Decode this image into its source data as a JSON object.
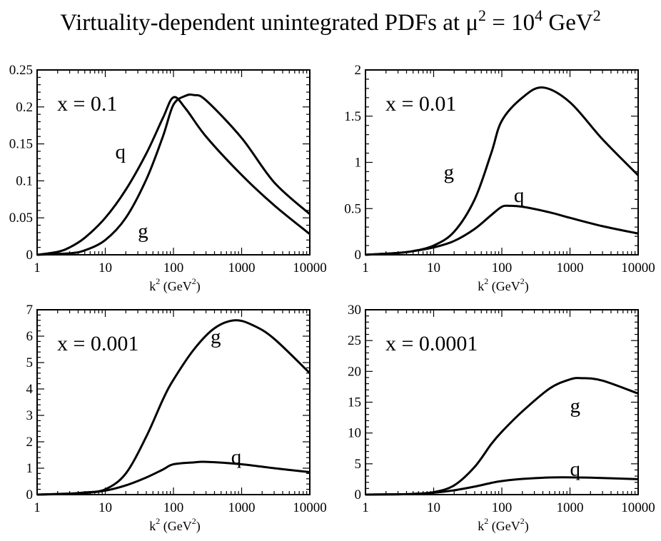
{
  "figure": {
    "title_prefix": "Virtuality-dependent unintegrated PDFs at μ",
    "title_mu_exp": "2",
    "title_eq": " = 10",
    "title_10_exp": "4",
    "title_unit": " GeV",
    "title_unit_exp": "2"
  },
  "chart_data": [
    {
      "type": "line",
      "panel_label": "x = 0.1",
      "xscale": "log",
      "xlim": [
        1,
        10000
      ],
      "ylim": [
        0,
        0.25
      ],
      "xticks": [
        1,
        10,
        100,
        1000,
        10000
      ],
      "xtick_labels": [
        "1",
        "10",
        "100",
        "1000",
        "10000"
      ],
      "yticks": [
        0,
        0.05,
        0.1,
        0.15,
        0.2,
        0.25
      ],
      "ytick_labels": [
        "0",
        "0.05",
        "0.1",
        "0.15",
        "0.2",
        "0.25"
      ],
      "xlabel": {
        "k": "k",
        "k_exp": "2",
        "unit": "(GeV",
        "unit_exp": "2",
        "close": ")"
      },
      "series": [
        {
          "name": "q",
          "label_at": [
            14,
            0.14
          ],
          "x": [
            1,
            2,
            3,
            5,
            10,
            20,
            40,
            70,
            100,
            150,
            300,
            1000,
            3000,
            10000
          ],
          "y": [
            0,
            0.004,
            0.01,
            0.023,
            0.05,
            0.088,
            0.137,
            0.185,
            0.213,
            0.198,
            0.16,
            0.108,
            0.067,
            0.028
          ]
        },
        {
          "name": "g",
          "label_at": [
            30,
            0.033
          ],
          "x": [
            1,
            3,
            5,
            10,
            20,
            40,
            70,
            100,
            150,
            200,
            300,
            1000,
            3000,
            10000
          ],
          "y": [
            0,
            0.002,
            0.006,
            0.02,
            0.05,
            0.102,
            0.16,
            0.203,
            0.215,
            0.216,
            0.209,
            0.158,
            0.098,
            0.055
          ]
        }
      ]
    },
    {
      "type": "line",
      "panel_label": "x = 0.01",
      "xscale": "log",
      "xlim": [
        1,
        10000
      ],
      "ylim": [
        0,
        2
      ],
      "xticks": [
        1,
        10,
        100,
        1000,
        10000
      ],
      "xtick_labels": [
        "1",
        "10",
        "100",
        "1000",
        "10000"
      ],
      "yticks": [
        0,
        0.5,
        1,
        1.5,
        2
      ],
      "ytick_labels": [
        "0",
        "0.5",
        "1",
        "1.5",
        "2"
      ],
      "xlabel": {
        "k": "k",
        "k_exp": "2",
        "unit": "(GeV",
        "unit_exp": "2",
        "close": ")"
      },
      "series": [
        {
          "name": "g",
          "label_at": [
            14,
            0.9
          ],
          "x": [
            1,
            3,
            5,
            10,
            20,
            40,
            70,
            100,
            200,
            400,
            1000,
            3000,
            10000
          ],
          "y": [
            0,
            0.02,
            0.04,
            0.1,
            0.25,
            0.6,
            1.1,
            1.45,
            1.7,
            1.81,
            1.65,
            1.25,
            0.86
          ]
        },
        {
          "name": "q",
          "label_at": [
            150,
            0.65
          ],
          "x": [
            1,
            3,
            5,
            10,
            20,
            40,
            70,
            100,
            130,
            200,
            500,
            1000,
            3000,
            10000
          ],
          "y": [
            0,
            0.02,
            0.04,
            0.08,
            0.15,
            0.28,
            0.43,
            0.52,
            0.53,
            0.52,
            0.46,
            0.4,
            0.31,
            0.23
          ]
        }
      ]
    },
    {
      "type": "line",
      "panel_label": "x = 0.001",
      "xscale": "log",
      "xlim": [
        1,
        10000
      ],
      "ylim": [
        0,
        7
      ],
      "xticks": [
        1,
        10,
        100,
        1000,
        10000
      ],
      "xtick_labels": [
        "1",
        "10",
        "100",
        "1000",
        "10000"
      ],
      "yticks": [
        0,
        1,
        2,
        3,
        4,
        5,
        6,
        7
      ],
      "ytick_labels": [
        "0",
        "1",
        "2",
        "3",
        "4",
        "5",
        "6",
        "7"
      ],
      "xlabel": {
        "k": "k",
        "k_exp": "2",
        "unit": "(GeV",
        "unit_exp": "2",
        "close": ")"
      },
      "series": [
        {
          "name": "g",
          "label_at": [
            350,
            6.0
          ],
          "x": [
            1,
            3,
            5,
            10,
            20,
            40,
            70,
            100,
            200,
            400,
            800,
            1500,
            3000,
            10000
          ],
          "y": [
            0,
            0.04,
            0.08,
            0.2,
            0.8,
            2.2,
            3.6,
            4.35,
            5.5,
            6.3,
            6.6,
            6.4,
            5.9,
            4.6
          ]
        },
        {
          "name": "q",
          "label_at": [
            700,
            1.45
          ],
          "x": [
            1,
            3,
            5,
            10,
            20,
            40,
            70,
            100,
            200,
            300,
            1000,
            3000,
            10000
          ],
          "y": [
            0,
            0.03,
            0.06,
            0.15,
            0.35,
            0.65,
            0.95,
            1.15,
            1.22,
            1.24,
            1.15,
            1.0,
            0.85
          ]
        }
      ]
    },
    {
      "type": "line",
      "panel_label": "x = 0.0001",
      "xscale": "log",
      "xlim": [
        1,
        10000
      ],
      "ylim": [
        0,
        30
      ],
      "xticks": [
        1,
        10,
        100,
        1000,
        10000
      ],
      "xtick_labels": [
        "1",
        "10",
        "100",
        "1000",
        "10000"
      ],
      "yticks": [
        0,
        5,
        10,
        15,
        20,
        25,
        30
      ],
      "ytick_labels": [
        "0",
        "5",
        "10",
        "15",
        "20",
        "25",
        "30"
      ],
      "xlabel": {
        "k": "k",
        "k_exp": "2",
        "unit": "(GeV",
        "unit_exp": "2",
        "close": ")"
      },
      "series": [
        {
          "name": "g",
          "label_at": [
            1000,
            14.5
          ],
          "x": [
            1,
            3,
            5,
            10,
            20,
            40,
            70,
            100,
            200,
            500,
            1000,
            1500,
            3000,
            10000
          ],
          "y": [
            0,
            0.05,
            0.12,
            0.4,
            1.5,
            4.5,
            8.2,
            10.2,
            13.5,
            17.2,
            18.7,
            18.9,
            18.5,
            16.4
          ]
        },
        {
          "name": "q",
          "label_at": [
            1000,
            4.2
          ],
          "x": [
            1,
            3,
            5,
            10,
            20,
            40,
            70,
            100,
            200,
            600,
            2000,
            10000
          ],
          "y": [
            0,
            0.05,
            0.1,
            0.3,
            0.7,
            1.3,
            1.9,
            2.2,
            2.55,
            2.8,
            2.75,
            2.5
          ]
        }
      ]
    }
  ]
}
